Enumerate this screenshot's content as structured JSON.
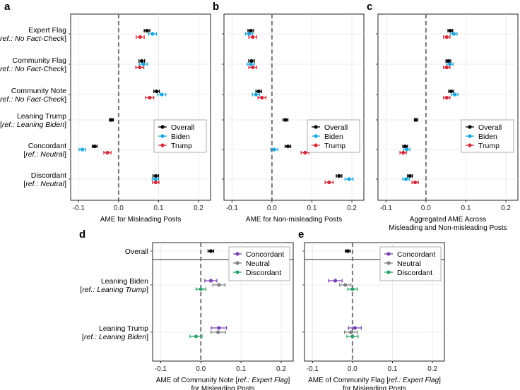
{
  "chart_data": [
    {
      "panel": "a",
      "type": "scatter",
      "subtype": "dot-with-errorbars",
      "xlabel": [
        "AME for Misleading Posts"
      ],
      "xlim": [
        -0.12,
        0.23
      ],
      "xticks": [
        -0.1,
        0.0,
        0.1,
        0.2
      ],
      "xtick_labels": [
        "-0.1",
        "0.0",
        "0.1",
        "0.2"
      ],
      "ref_line": 0,
      "legend": {
        "position": "center-right",
        "entries": [
          "Overall",
          "Biden",
          "Trump"
        ]
      },
      "rows": [
        {
          "label": "Expert Flag",
          "ref": "No Fact-Check",
          "points": [
            {
              "series": "Overall",
              "value": 0.071,
              "lo": 0.064,
              "hi": 0.078
            },
            {
              "series": "Biden",
              "value": 0.085,
              "lo": 0.075,
              "hi": 0.095
            },
            {
              "series": "Trump",
              "value": 0.054,
              "lo": 0.044,
              "hi": 0.064
            }
          ]
        },
        {
          "label": "Community Flag",
          "ref": "No Fact-Check",
          "points": [
            {
              "series": "Overall",
              "value": 0.058,
              "lo": 0.051,
              "hi": 0.065
            },
            {
              "series": "Biden",
              "value": 0.062,
              "lo": 0.052,
              "hi": 0.072
            },
            {
              "series": "Trump",
              "value": 0.053,
              "lo": 0.043,
              "hi": 0.063
            }
          ]
        },
        {
          "label": "Community Note",
          "ref": "No Fact-Check",
          "points": [
            {
              "series": "Overall",
              "value": 0.095,
              "lo": 0.088,
              "hi": 0.102
            },
            {
              "series": "Biden",
              "value": 0.108,
              "lo": 0.098,
              "hi": 0.118
            },
            {
              "series": "Trump",
              "value": 0.078,
              "lo": 0.068,
              "hi": 0.088
            }
          ]
        },
        {
          "label": "Leaning Trump",
          "ref": "Leaning Biden",
          "points": [
            {
              "series": "Overall",
              "value": -0.018,
              "lo": -0.023,
              "hi": -0.013
            }
          ]
        },
        {
          "label": "Concordant",
          "ref": "Neutral",
          "points": [
            {
              "series": "Overall",
              "value": -0.06,
              "lo": -0.066,
              "hi": -0.054
            },
            {
              "series": "Biden",
              "value": -0.091,
              "lo": -0.099,
              "hi": -0.083
            },
            {
              "series": "Trump",
              "value": -0.028,
              "lo": -0.037,
              "hi": -0.019
            }
          ]
        },
        {
          "label": "Discordant",
          "ref": "Neutral",
          "points": [
            {
              "series": "Overall",
              "value": 0.093,
              "lo": 0.086,
              "hi": 0.1
            },
            {
              "series": "Biden",
              "value": 0.092,
              "lo": 0.084,
              "hi": 0.1
            },
            {
              "series": "Trump",
              "value": 0.093,
              "lo": 0.085,
              "hi": 0.101
            }
          ]
        }
      ]
    },
    {
      "panel": "b",
      "type": "scatter",
      "subtype": "dot-with-errorbars",
      "xlabel": [
        "AME for Non-misleading Posts"
      ],
      "xlim": [
        -0.12,
        0.23
      ],
      "xticks": [
        -0.1,
        0.0,
        0.1,
        0.2
      ],
      "xtick_labels": [
        "-0.1",
        "0.0",
        "0.1",
        "0.2"
      ],
      "ref_line": 0,
      "legend": {
        "position": "center-right",
        "entries": [
          "Overall",
          "Biden",
          "Trump"
        ]
      },
      "rows": [
        {
          "label": "Expert Flag",
          "points": [
            {
              "series": "Overall",
              "value": -0.053,
              "lo": -0.06,
              "hi": -0.046
            },
            {
              "series": "Biden",
              "value": -0.057,
              "lo": -0.066,
              "hi": -0.048
            },
            {
              "series": "Trump",
              "value": -0.048,
              "lo": -0.058,
              "hi": -0.038
            }
          ]
        },
        {
          "label": "Community Flag",
          "points": [
            {
              "series": "Overall",
              "value": -0.051,
              "lo": -0.058,
              "hi": -0.044
            },
            {
              "series": "Biden",
              "value": -0.053,
              "lo": -0.062,
              "hi": -0.044
            },
            {
              "series": "Trump",
              "value": -0.048,
              "lo": -0.058,
              "hi": -0.038
            }
          ]
        },
        {
          "label": "Community Note",
          "points": [
            {
              "series": "Overall",
              "value": -0.033,
              "lo": -0.04,
              "hi": -0.026
            },
            {
              "series": "Biden",
              "value": -0.04,
              "lo": -0.049,
              "hi": -0.031
            },
            {
              "series": "Trump",
              "value": -0.025,
              "lo": -0.035,
              "hi": -0.015
            }
          ]
        },
        {
          "label": "Leaning Trump",
          "points": [
            {
              "series": "Overall",
              "value": 0.034,
              "lo": 0.028,
              "hi": 0.04
            }
          ]
        },
        {
          "label": "Concordant",
          "points": [
            {
              "series": "Overall",
              "value": 0.04,
              "lo": 0.033,
              "hi": 0.047
            },
            {
              "series": "Biden",
              "value": 0.006,
              "lo": -0.003,
              "hi": 0.015
            },
            {
              "series": "Trump",
              "value": 0.083,
              "lo": 0.073,
              "hi": 0.093
            }
          ]
        },
        {
          "label": "Discordant",
          "points": [
            {
              "series": "Overall",
              "value": 0.168,
              "lo": 0.161,
              "hi": 0.175
            },
            {
              "series": "Biden",
              "value": 0.193,
              "lo": 0.183,
              "hi": 0.203
            },
            {
              "series": "Trump",
              "value": 0.143,
              "lo": 0.133,
              "hi": 0.153
            }
          ]
        }
      ]
    },
    {
      "panel": "c",
      "type": "scatter",
      "subtype": "dot-with-errorbars",
      "xlabel": [
        "Aggregated AME Across",
        "Misleading and Non-misleading Posts"
      ],
      "xlim": [
        -0.12,
        0.23
      ],
      "xticks": [
        -0.1,
        0.0,
        0.1,
        0.2
      ],
      "xtick_labels": [
        "-0.1",
        "0.0",
        "0.1",
        "0.2"
      ],
      "ref_line": 0,
      "legend": {
        "position": "center-right",
        "entries": [
          "Overall",
          "Biden",
          "Trump"
        ]
      },
      "rows": [
        {
          "label": "Expert Flag",
          "points": [
            {
              "series": "Overall",
              "value": 0.061,
              "lo": 0.055,
              "hi": 0.067
            },
            {
              "series": "Biden",
              "value": 0.07,
              "lo": 0.062,
              "hi": 0.078
            },
            {
              "series": "Trump",
              "value": 0.052,
              "lo": 0.044,
              "hi": 0.06
            }
          ]
        },
        {
          "label": "Community Flag",
          "points": [
            {
              "series": "Overall",
              "value": 0.056,
              "lo": 0.05,
              "hi": 0.062
            },
            {
              "series": "Biden",
              "value": 0.06,
              "lo": 0.052,
              "hi": 0.068
            },
            {
              "series": "Trump",
              "value": 0.052,
              "lo": 0.044,
              "hi": 0.06
            }
          ]
        },
        {
          "label": "Community Note",
          "points": [
            {
              "series": "Overall",
              "value": 0.063,
              "lo": 0.057,
              "hi": 0.069
            },
            {
              "series": "Biden",
              "value": 0.072,
              "lo": 0.064,
              "hi": 0.08
            },
            {
              "series": "Trump",
              "value": 0.052,
              "lo": 0.044,
              "hi": 0.06
            }
          ]
        },
        {
          "label": "Leaning Trump",
          "points": [
            {
              "series": "Overall",
              "value": -0.025,
              "lo": -0.029,
              "hi": -0.021
            }
          ]
        },
        {
          "label": "Concordant",
          "points": [
            {
              "series": "Overall",
              "value": -0.052,
              "lo": -0.058,
              "hi": -0.046
            },
            {
              "series": "Biden",
              "value": -0.048,
              "lo": -0.056,
              "hi": -0.04
            },
            {
              "series": "Trump",
              "value": -0.057,
              "lo": -0.065,
              "hi": -0.049
            }
          ]
        },
        {
          "label": "Discordant",
          "points": [
            {
              "series": "Overall",
              "value": -0.04,
              "lo": -0.046,
              "hi": -0.034
            },
            {
              "series": "Biden",
              "value": -0.05,
              "lo": -0.058,
              "hi": -0.042
            },
            {
              "series": "Trump",
              "value": -0.027,
              "lo": -0.035,
              "hi": -0.019
            }
          ]
        }
      ]
    },
    {
      "panel": "d",
      "type": "scatter",
      "subtype": "dot-with-errorbars",
      "xlabel": [
        "AME of Community Note [",
        "ref.: Expert Flag",
        "]",
        "for Misleading Posts"
      ],
      "xlim": [
        -0.12,
        0.23
      ],
      "xticks": [
        -0.1,
        0.0,
        0.1,
        0.2
      ],
      "xtick_labels": [
        "-0.1",
        "0.0",
        "0.1",
        "0.2"
      ],
      "ref_line": 0,
      "legend": {
        "position": "top-right",
        "entries": [
          "Concordant",
          "Neutral",
          "Discordant"
        ]
      },
      "top_row": {
        "label": "Overall",
        "points": [
          {
            "series": "Overall",
            "value": 0.025,
            "lo": 0.018,
            "hi": 0.032
          }
        ]
      },
      "rows": [
        {
          "label": "Leaning Biden",
          "ref": "Leaning Trump",
          "points": [
            {
              "series": "Concordant",
              "value": 0.025,
              "lo": 0.01,
              "hi": 0.04
            },
            {
              "series": "Neutral",
              "value": 0.045,
              "lo": 0.03,
              "hi": 0.06
            },
            {
              "series": "Discordant",
              "value": 0.0,
              "lo": -0.012,
              "hi": 0.012
            }
          ]
        },
        {
          "label": "Leaning Trump",
          "ref": "Leaning Biden",
          "points": [
            {
              "series": "Concordant",
              "value": 0.045,
              "lo": 0.026,
              "hi": 0.064
            },
            {
              "series": "Neutral",
              "value": 0.043,
              "lo": 0.025,
              "hi": 0.061
            },
            {
              "series": "Discordant",
              "value": -0.012,
              "lo": -0.027,
              "hi": 0.003
            }
          ]
        }
      ]
    },
    {
      "panel": "e",
      "type": "scatter",
      "subtype": "dot-with-errorbars",
      "xlabel": [
        "AME of Community Flag [",
        "ref.: Expert Flag",
        "]",
        "for Misleading Posts"
      ],
      "xlim": [
        -0.12,
        0.23
      ],
      "xticks": [
        -0.1,
        0.0,
        0.1,
        0.2
      ],
      "xtick_labels": [
        "-0.1",
        "0.0",
        "0.1",
        "0.2"
      ],
      "ref_line": 0,
      "legend": {
        "position": "top-right",
        "entries": [
          "Concordant",
          "Neutral",
          "Discordant"
        ]
      },
      "top_row": {
        "label": "Overall",
        "points": [
          {
            "series": "Overall",
            "value": -0.012,
            "lo": -0.018,
            "hi": -0.006
          }
        ]
      },
      "rows": [
        {
          "label": "Leaning Biden",
          "points": [
            {
              "series": "Concordant",
              "value": -0.043,
              "lo": -0.06,
              "hi": -0.026
            },
            {
              "series": "Neutral",
              "value": -0.018,
              "lo": -0.032,
              "hi": -0.004
            },
            {
              "series": "Discordant",
              "value": 0.0,
              "lo": -0.012,
              "hi": 0.012
            }
          ]
        },
        {
          "label": "Leaning Trump",
          "points": [
            {
              "series": "Concordant",
              "value": 0.006,
              "lo": -0.01,
              "hi": 0.022
            },
            {
              "series": "Neutral",
              "value": -0.004,
              "lo": -0.02,
              "hi": 0.012
            },
            {
              "series": "Discordant",
              "value": 0.0,
              "lo": -0.014,
              "hi": 0.014
            }
          ]
        }
      ]
    }
  ],
  "colors": {
    "Overall": "#000000",
    "Biden": "#1aa6de",
    "Trump": "#d22b3a",
    "Concordant": "#7b3fb3",
    "Neutral": "#808080",
    "Discordant": "#2ea36b",
    "refline": "#777777",
    "grid": "#e6e6e6"
  }
}
